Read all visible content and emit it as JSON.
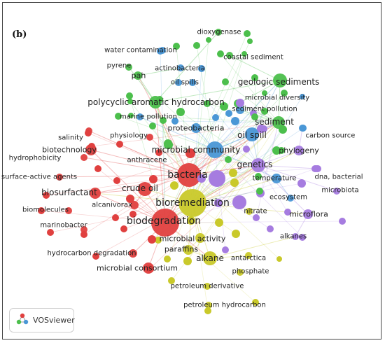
{
  "panel_label": "(b)",
  "software": "VOSviewer",
  "colors": {
    "red": "#e0403f",
    "green": "#4cbf4c",
    "blue": "#4a97d6",
    "yellow": "#c9c92a",
    "purple": "#a67ce0"
  },
  "nodes": [
    {
      "id": "bioremediation",
      "label": "bioremediation",
      "c": "yellow",
      "w": 5
    },
    {
      "id": "biodegradation",
      "label": "biodegradation",
      "c": "red",
      "w": 5
    },
    {
      "id": "bacteria",
      "label": "bacteria",
      "c": "red",
      "w": 4
    },
    {
      "id": "microbial_community",
      "label": "microbial community",
      "c": "blue",
      "w": 3
    },
    {
      "id": "oil_spill",
      "label": "oil spill",
      "c": "blue",
      "w": 3
    },
    {
      "id": "sediment",
      "label": "sediment",
      "c": "green",
      "w": 3
    },
    {
      "id": "geologic_sediments",
      "label": "geologic sediments",
      "c": "green",
      "w": 3
    },
    {
      "id": "genetics",
      "label": "genetics",
      "c": "purple",
      "w": 3
    },
    {
      "id": "pah_full",
      "label": "polycyclic aromatic hydrocarbon",
      "c": "green",
      "w": 3
    },
    {
      "id": "crude_oil",
      "label": "crude oil",
      "c": "red",
      "w": 3
    },
    {
      "id": "alkane",
      "label": "alkane",
      "c": "yellow",
      "w": 3
    },
    {
      "id": "biosurfactant",
      "label": "biosurfactant",
      "c": "red",
      "w": 2
    },
    {
      "id": "biotechnology",
      "label": "biotechnology",
      "c": "red",
      "w": 2
    },
    {
      "id": "microbial_consortium",
      "label": "microbial consortium",
      "c": "red",
      "w": 2
    },
    {
      "id": "microbial_activity",
      "label": "microbial activity",
      "c": "yellow",
      "w": 2
    },
    {
      "id": "phylogeny",
      "label": "phylogeny",
      "c": "purple",
      "w": 2
    },
    {
      "id": "microflora",
      "label": "microflora",
      "c": "purple",
      "w": 2
    },
    {
      "id": "temperature",
      "label": "temperature",
      "c": "blue",
      "w": 2
    },
    {
      "id": "proteobacteria",
      "label": "proteobacteria",
      "c": "blue",
      "w": 2
    },
    {
      "id": "paraffins",
      "label": "paraffins",
      "c": "yellow",
      "w": 2
    },
    {
      "id": "alcanivorax",
      "label": "alcanivorax",
      "c": "red",
      "w": 2
    },
    {
      "id": "hydrocarbon_degradation",
      "label": "hydrocarbon degradation",
      "c": "red",
      "w": 1
    },
    {
      "id": "pah",
      "label": "pah",
      "c": "green",
      "w": 2
    },
    {
      "id": "dioxygenase",
      "label": "dioxygenase",
      "c": "green",
      "w": 1
    },
    {
      "id": "water_contamination",
      "label": "water contamination",
      "c": "blue",
      "w": 1
    },
    {
      "id": "coastal_sediment",
      "label": "coastal sediment",
      "c": "green",
      "w": 1
    },
    {
      "id": "pyrene",
      "label": "pyrene",
      "c": "green",
      "w": 1
    },
    {
      "id": "actinobacteria",
      "label": "actinobacteria",
      "c": "blue",
      "w": 1
    },
    {
      "id": "oil_spills",
      "label": "oil spills",
      "c": "blue",
      "w": 1
    },
    {
      "id": "marine_pollution",
      "label": "marine pollution",
      "c": "blue",
      "w": 1
    },
    {
      "id": "microbial_diversity",
      "label": "microbial diversity",
      "c": "green",
      "w": 1
    },
    {
      "id": "sediment_pollution",
      "label": "sediment pollution",
      "c": "blue",
      "w": 1
    },
    {
      "id": "carbon_source",
      "label": "carbon source",
      "c": "blue",
      "w": 1
    },
    {
      "id": "salinity",
      "label": "salinity",
      "c": "red",
      "w": 1
    },
    {
      "id": "physiology",
      "label": "physiology",
      "c": "red",
      "w": 1
    },
    {
      "id": "hydrophobicity",
      "label": "hydrophobicity",
      "c": "red",
      "w": 1
    },
    {
      "id": "anthracene",
      "label": "anthracene",
      "c": "green",
      "w": 1
    },
    {
      "id": "surface_active_agents",
      "label": "surface-active agents",
      "c": "red",
      "w": 1
    },
    {
      "id": "biomolecules",
      "label": "biomolecules",
      "c": "red",
      "w": 1
    },
    {
      "id": "marinobacter",
      "label": "marinobacter",
      "c": "red",
      "w": 1
    },
    {
      "id": "dna_bacterial",
      "label": "dna, bacterial",
      "c": "purple",
      "w": 1
    },
    {
      "id": "microbiota",
      "label": "microbiota",
      "c": "purple",
      "w": 1
    },
    {
      "id": "ecosystem",
      "label": "ecosystem",
      "c": "blue",
      "w": 1
    },
    {
      "id": "nitrate",
      "label": "nitrate",
      "c": "yellow",
      "w": 1
    },
    {
      "id": "alkanes",
      "label": "alkanes",
      "c": "purple",
      "w": 1
    },
    {
      "id": "antarctica",
      "label": "antarctica",
      "c": "yellow",
      "w": 1
    },
    {
      "id": "phosphate",
      "label": "phosphate",
      "c": "yellow",
      "w": 1
    },
    {
      "id": "petroleum_derivative",
      "label": "petroleum derivative",
      "c": "yellow",
      "w": 1
    },
    {
      "id": "petroleum_hydrocarbon",
      "label": "petroleum hydrocarbon",
      "c": "yellow",
      "w": 1
    }
  ],
  "edges": [
    [
      "bioremediation",
      "biodegradation"
    ],
    [
      "bioremediation",
      "bacteria"
    ],
    [
      "bioremediation",
      "microbial_community"
    ],
    [
      "bioremediation",
      "oil_spill"
    ],
    [
      "bioremediation",
      "genetics"
    ],
    [
      "bioremediation",
      "crude_oil"
    ],
    [
      "bioremediation",
      "alkane"
    ],
    [
      "bioremediation",
      "microbial_activity"
    ],
    [
      "bioremediation",
      "paraffins"
    ],
    [
      "bioremediation",
      "sediment"
    ],
    [
      "bioremediation",
      "pah_full"
    ],
    [
      "bioremediation",
      "phylogeny"
    ],
    [
      "bioremediation",
      "microflora"
    ],
    [
      "bioremediation",
      "temperature"
    ],
    [
      "bioremediation",
      "biosurfactant"
    ],
    [
      "biodegradation",
      "bacteria"
    ],
    [
      "biodegradation",
      "crude_oil"
    ],
    [
      "biodegradation",
      "alcanivorax"
    ],
    [
      "biodegradation",
      "microbial_consortium"
    ],
    [
      "biodegradation",
      "hydrocarbon_degradation"
    ],
    [
      "biodegradation",
      "biosurfactant"
    ],
    [
      "biodegradation",
      "biotechnology"
    ],
    [
      "biodegradation",
      "pah_full"
    ],
    [
      "biodegradation",
      "alkane"
    ],
    [
      "biodegradation",
      "microbial_community"
    ],
    [
      "biodegradation",
      "genetics"
    ],
    [
      "bacteria",
      "microbial_community"
    ],
    [
      "bacteria",
      "genetics"
    ],
    [
      "bacteria",
      "pah_full"
    ],
    [
      "bacteria",
      "biotechnology"
    ],
    [
      "bacteria",
      "salinity"
    ],
    [
      "bacteria",
      "physiology"
    ],
    [
      "bacteria",
      "hydrophobicity"
    ],
    [
      "bacteria",
      "surface_active_agents"
    ],
    [
      "bacteria",
      "biosurfactant"
    ],
    [
      "bacteria",
      "oil_spill"
    ],
    [
      "bacteria",
      "sediment"
    ],
    [
      "bacteria",
      "pah"
    ],
    [
      "bacteria",
      "crude_oil"
    ],
    [
      "microbial_community",
      "oil_spill"
    ],
    [
      "microbial_community",
      "sediment"
    ],
    [
      "microbial_community",
      "geologic_sediments"
    ],
    [
      "microbial_community",
      "proteobacteria"
    ],
    [
      "microbial_community",
      "marine_pollution"
    ],
    [
      "microbial_community",
      "temperature"
    ],
    [
      "oil_spill",
      "sediment"
    ],
    [
      "oil_spill",
      "geologic_sediments"
    ],
    [
      "oil_spill",
      "genetics"
    ],
    [
      "sediment",
      "geologic_sediments"
    ],
    [
      "sediment",
      "microbial_diversity"
    ],
    [
      "sediment",
      "sediment_pollution"
    ],
    [
      "geologic_sediments",
      "pah_full"
    ],
    [
      "geologic_sediments",
      "microbial_diversity"
    ],
    [
      "geologic_sediments",
      "coastal_sediment"
    ],
    [
      "pah_full",
      "pah"
    ],
    [
      "pah_full",
      "pyrene"
    ],
    [
      "pah_full",
      "anthracene"
    ],
    [
      "pah_full",
      "dioxygenase"
    ],
    [
      "pah",
      "actinobacteria"
    ],
    [
      "genetics",
      "phylogeny"
    ],
    [
      "genetics",
      "microflora"
    ],
    [
      "genetics",
      "dna_bacterial"
    ],
    [
      "genetics",
      "microbiota"
    ],
    [
      "alkane",
      "paraffins"
    ],
    [
      "alkane",
      "antarctica"
    ],
    [
      "alkane",
      "alkanes"
    ],
    [
      "crude_oil",
      "alcanivorax"
    ],
    [
      "crude_oil",
      "biosurfactant"
    ],
    [
      "microbial_activity",
      "paraffins"
    ],
    [
      "microflora",
      "alkanes"
    ],
    [
      "temperature",
      "ecosystem"
    ],
    [
      "phylogeny",
      "carbon_source"
    ]
  ]
}
